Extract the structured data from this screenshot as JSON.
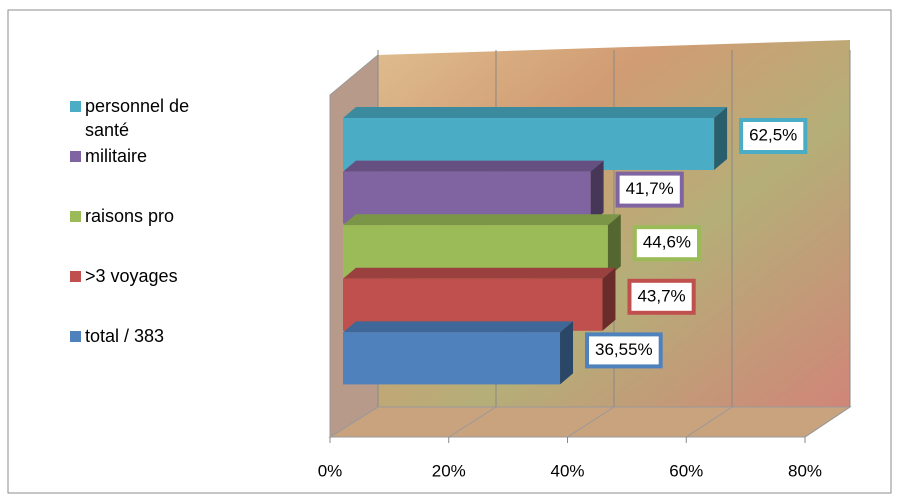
{
  "chart_data": {
    "type": "bar3d",
    "series": [
      {
        "name": "personnel de santé",
        "color": "#4bacc6",
        "values": [
          62.5
        ],
        "value_labels": [
          "62,5%"
        ]
      },
      {
        "name": "militaire",
        "color": "#8064a2",
        "values": [
          41.7
        ],
        "value_labels": [
          "41,7%"
        ]
      },
      {
        "name": "raisons pro",
        "color": "#9bbb59",
        "values": [
          44.6
        ],
        "value_labels": [
          "44,6%"
        ]
      },
      {
        "name": ">3 voyages",
        "color": "#c0504d",
        "values": [
          43.7
        ],
        "value_labels": [
          "43,7%"
        ]
      },
      {
        "name": "total / 383",
        "color": "#4f81bd",
        "values": [
          36.55
        ],
        "value_labels": [
          "36,55%"
        ]
      }
    ],
    "xlim": [
      0,
      80
    ],
    "xticks": [
      {
        "value": 0,
        "label": "0%"
      },
      {
        "value": 20,
        "label": "20%"
      },
      {
        "value": 40,
        "label": "40%"
      },
      {
        "value": 60,
        "label": "60%"
      },
      {
        "value": 80,
        "label": "80%"
      }
    ],
    "grid": true,
    "legend": "left"
  }
}
